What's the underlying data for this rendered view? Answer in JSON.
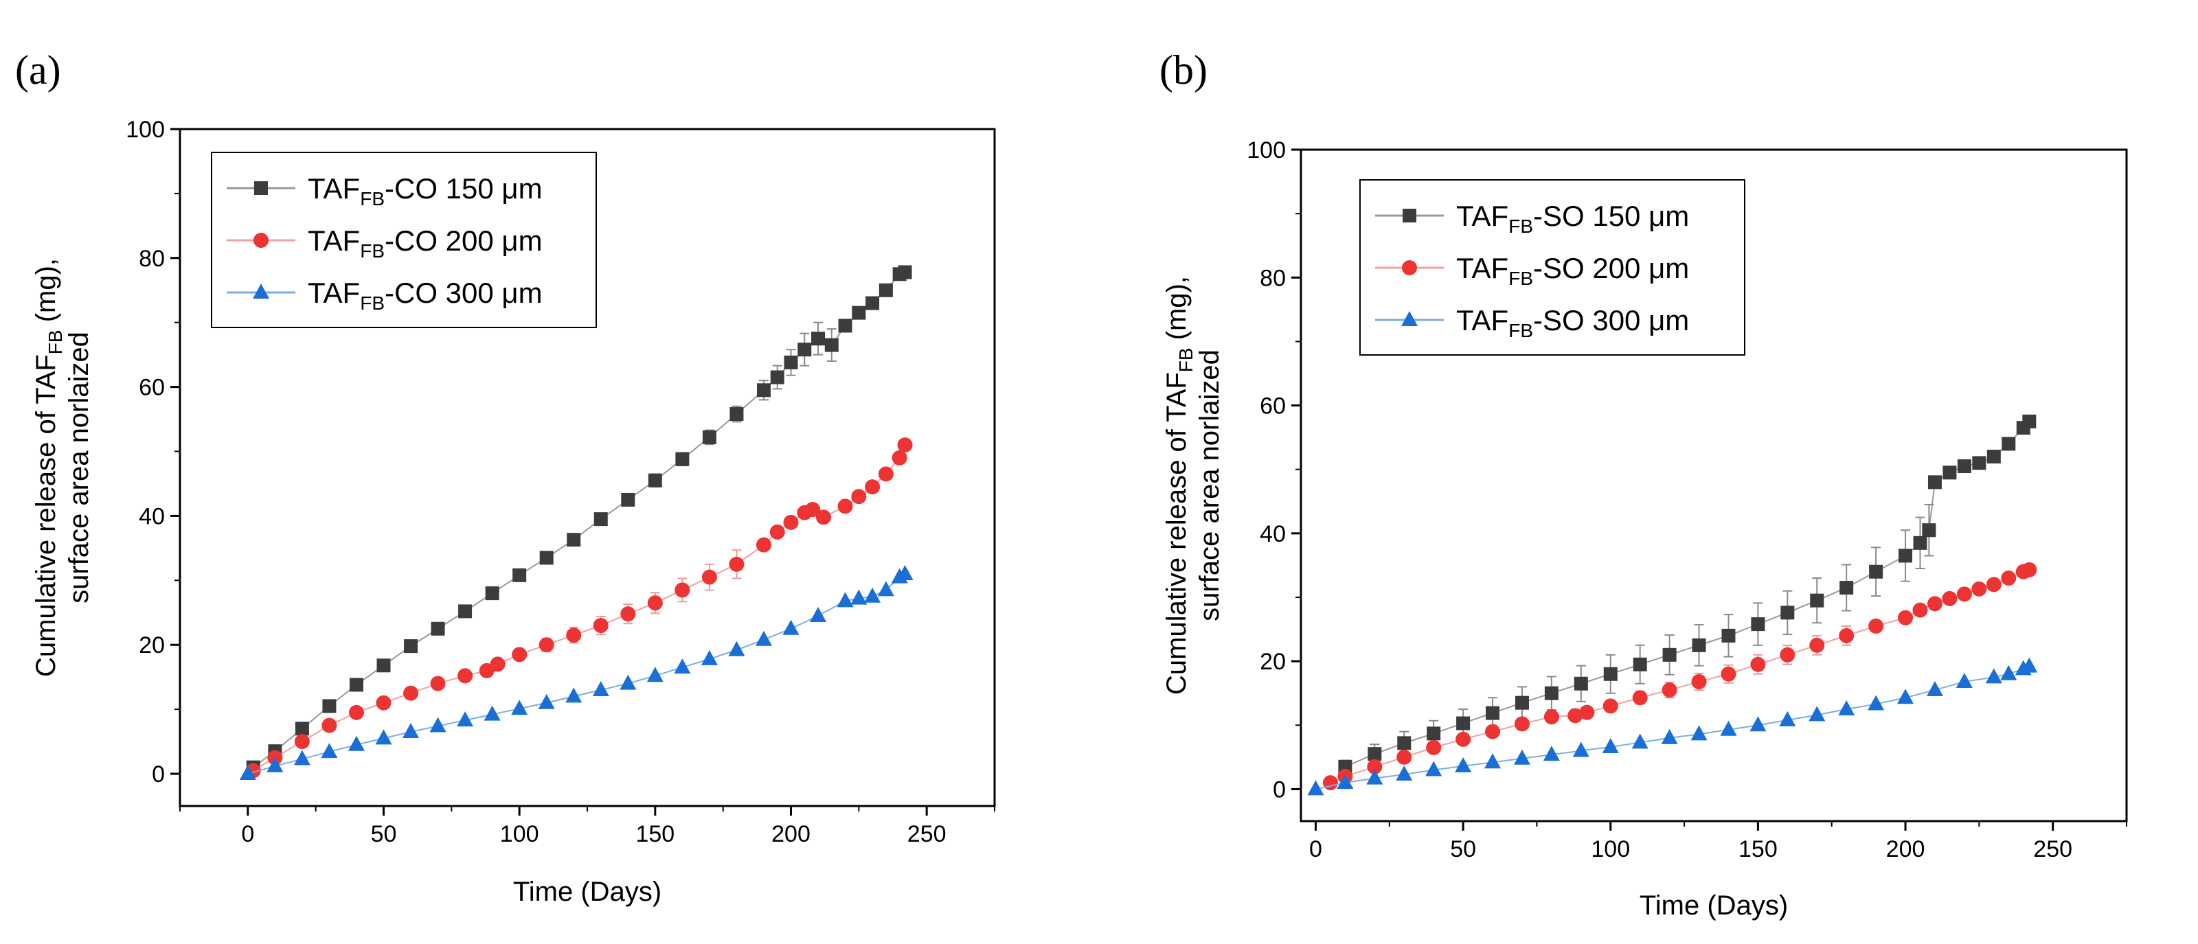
{
  "figure": {
    "colors": {
      "series_150": "#3c3c3c",
      "series_200": "#ee3333",
      "series_300": "#1a6fd6",
      "errorbar_150": "#8a8a8a",
      "errorbar_200": "#f39a9a",
      "line_150": "#9a9a9a",
      "line_200": "#f3a0a0",
      "line_300": "#7aaee8"
    },
    "markers": {
      "series_150": "square-marker",
      "series_200": "circle-marker",
      "series_300": "triangle-marker"
    }
  },
  "chart_data": [
    {
      "type": "scatter",
      "panel_label": "(a)",
      "xlabel": "Time (Days)",
      "ylabel_line1_parts": [
        "Cumulative release of TAF",
        "FB",
        " (mg),"
      ],
      "ylabel_line2": "surface area norlaized",
      "xlim": [
        -25,
        275
      ],
      "ylim": [
        -5,
        100
      ],
      "xticks": [
        0,
        50,
        100,
        150,
        200,
        250
      ],
      "yticks": [
        0,
        20,
        40,
        60,
        80,
        100
      ],
      "legend_position": "top-left",
      "series": [
        {
          "name": "TAFFB-CO 150 μm",
          "legend_parts": [
            "TAF",
            "FB",
            "-CO 150 μm"
          ],
          "marker": "square",
          "x": [
            2,
            10,
            20,
            30,
            40,
            50,
            60,
            70,
            80,
            90,
            100,
            110,
            120,
            130,
            140,
            150,
            160,
            170,
            180,
            190,
            195,
            200,
            205,
            210,
            215,
            220,
            225,
            230,
            235,
            240,
            242
          ],
          "y": [
            1,
            3.5,
            7,
            10.5,
            13.8,
            16.8,
            19.8,
            22.5,
            25.2,
            28,
            30.8,
            33.5,
            36.3,
            39.5,
            42.5,
            45.5,
            48.8,
            52.2,
            55.8,
            59.5,
            61.5,
            63.8,
            65.8,
            67.5,
            66.5,
            69.5,
            71.5,
            73,
            75,
            77.5,
            77.8
          ],
          "err": [
            0,
            0.3,
            0.4,
            0.5,
            0.6,
            0.7,
            0.7,
            0.8,
            0.8,
            0.8,
            0.8,
            0.9,
            0.9,
            0.9,
            0.9,
            1,
            1,
            1.1,
            1.2,
            1.5,
            1.8,
            2,
            2.5,
            2.5,
            2.5,
            0,
            0,
            0,
            0,
            0,
            0
          ]
        },
        {
          "name": "TAFFB-CO 200 μm",
          "legend_parts": [
            "TAF",
            "FB",
            "-CO 200 μm"
          ],
          "marker": "circle",
          "x": [
            2,
            10,
            20,
            30,
            40,
            50,
            60,
            70,
            80,
            88,
            92,
            100,
            110,
            120,
            130,
            140,
            150,
            160,
            170,
            180,
            190,
            195,
            200,
            205,
            208,
            212,
            220,
            225,
            230,
            235,
            240,
            242
          ],
          "y": [
            0.5,
            2.5,
            5,
            7.5,
            9.5,
            11,
            12.5,
            14,
            15.2,
            16,
            17,
            18.5,
            20,
            21.5,
            23,
            24.8,
            26.5,
            28.5,
            30.5,
            32.5,
            35.5,
            37.5,
            39,
            40.5,
            41,
            39.8,
            41.5,
            43,
            44.5,
            46.5,
            49,
            51
          ],
          "err": [
            0,
            0.2,
            0.2,
            0.3,
            0.3,
            0.3,
            0.3,
            0.3,
            0.3,
            0.3,
            0.5,
            0.8,
            1,
            1.2,
            1.4,
            1.5,
            1.6,
            1.8,
            2,
            2.2,
            0.5,
            0.5,
            0.5,
            0,
            0,
            0,
            0,
            0,
            0,
            0,
            0,
            0
          ]
        },
        {
          "name": "TAFFB-CO 300 μm",
          "legend_parts": [
            "TAF",
            "FB",
            "-CO 300 μm"
          ],
          "marker": "triangle",
          "x": [
            0,
            10,
            20,
            30,
            40,
            50,
            60,
            70,
            80,
            90,
            100,
            110,
            120,
            130,
            140,
            150,
            160,
            170,
            180,
            190,
            200,
            210,
            220,
            225,
            230,
            235,
            240,
            242
          ],
          "y": [
            0,
            1.2,
            2.3,
            3.4,
            4.5,
            5.5,
            6.5,
            7.4,
            8.3,
            9.2,
            10.1,
            11,
            12,
            13,
            14,
            15.2,
            16.5,
            17.8,
            19.2,
            20.8,
            22.5,
            24.5,
            26.8,
            27.2,
            27.5,
            28.5,
            30.5,
            31
          ]
        }
      ]
    },
    {
      "type": "scatter",
      "panel_label": "(b)",
      "xlabel": "Time (Days)",
      "ylabel_line1_parts": [
        "Cumulative release of TAF",
        "FB",
        " (mg),"
      ],
      "ylabel_line2": "surface area norlaized",
      "xlim": [
        -5,
        275
      ],
      "ylim": [
        -5,
        100
      ],
      "xticks": [
        0,
        50,
        100,
        150,
        200,
        250
      ],
      "yticks": [
        0,
        20,
        40,
        60,
        80,
        100
      ],
      "legend_position": "top-left",
      "series": [
        {
          "name": "TAFFB-SO 150 μm",
          "legend_parts": [
            "TAF",
            "FB",
            "-SO 150 μm"
          ],
          "marker": "square",
          "x": [
            10,
            20,
            30,
            40,
            50,
            60,
            70,
            80,
            90,
            100,
            110,
            120,
            130,
            140,
            150,
            160,
            170,
            180,
            190,
            200,
            205,
            208,
            210,
            215,
            220,
            225,
            230,
            235,
            240,
            242
          ],
          "y": [
            3.5,
            5.5,
            7.2,
            8.7,
            10.3,
            11.9,
            13.5,
            15,
            16.5,
            18,
            19.5,
            21,
            22.5,
            24,
            25.8,
            27.6,
            29.5,
            31.5,
            34,
            36.5,
            38.5,
            40.5,
            48,
            49.5,
            50.5,
            51,
            52,
            54,
            56.5,
            57.5
          ],
          "err": [
            1,
            1.5,
            1.8,
            2,
            2.2,
            2.4,
            2.5,
            2.6,
            2.8,
            3,
            3,
            3.1,
            3.2,
            3.3,
            3.3,
            3.4,
            3.5,
            3.6,
            3.8,
            4,
            4,
            4,
            0,
            0,
            0,
            0,
            0,
            0,
            0,
            0
          ]
        },
        {
          "name": "TAFFB-SO 200 μm",
          "legend_parts": [
            "TAF",
            "FB",
            "-SO 200 μm"
          ],
          "marker": "circle",
          "x": [
            5,
            10,
            20,
            30,
            40,
            50,
            60,
            70,
            80,
            88,
            92,
            100,
            110,
            120,
            130,
            140,
            150,
            160,
            170,
            180,
            190,
            200,
            205,
            210,
            215,
            220,
            225,
            230,
            235,
            240,
            242
          ],
          "y": [
            1,
            2,
            3.5,
            5,
            6.5,
            7.8,
            9,
            10.2,
            11.3,
            11.5,
            12,
            13,
            14.3,
            15.5,
            16.8,
            18,
            19.5,
            21,
            22.5,
            24,
            25.5,
            26.8,
            28,
            29,
            29.8,
            30.5,
            31.3,
            32,
            33,
            34,
            34.3
          ],
          "err": [
            0,
            0.3,
            0.4,
            0.5,
            0.5,
            0.5,
            0.5,
            0.5,
            0.5,
            0.5,
            0.6,
            0.8,
            1,
            1.2,
            1.3,
            1.4,
            1.5,
            1.5,
            1.5,
            1.5,
            0.5,
            0.3,
            0,
            0,
            0,
            0,
            0,
            0,
            0,
            0,
            0
          ]
        },
        {
          "name": "TAFFB-SO 300 μm",
          "legend_parts": [
            "TAF",
            "FB",
            "-SO 300 μm"
          ],
          "marker": "triangle",
          "x": [
            0,
            10,
            20,
            30,
            40,
            50,
            60,
            70,
            80,
            90,
            100,
            110,
            120,
            130,
            140,
            150,
            160,
            170,
            180,
            190,
            200,
            210,
            220,
            230,
            235,
            240,
            242
          ],
          "y": [
            0,
            1,
            1.7,
            2.3,
            3,
            3.6,
            4.2,
            4.8,
            5.4,
            6,
            6.6,
            7.3,
            8,
            8.6,
            9.3,
            10,
            10.8,
            11.6,
            12.5,
            13.3,
            14.3,
            15.5,
            16.8,
            17.5,
            18,
            18.8,
            19.2
          ]
        }
      ]
    }
  ]
}
